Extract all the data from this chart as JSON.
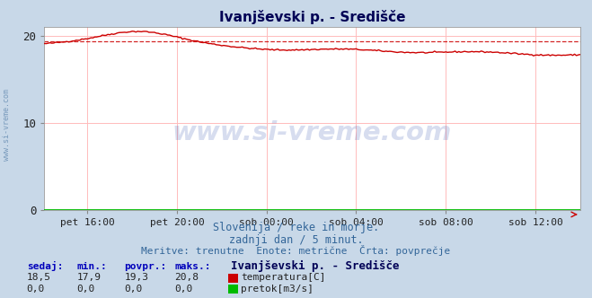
{
  "title": "Ivanjševski p. - Središče",
  "bg_color": "#c8d8e8",
  "plot_bg_color": "#ffffff",
  "grid_color": "#ffbbbb",
  "x_labels": [
    "pet 16:00",
    "pet 20:00",
    "sob 00:00",
    "sob 04:00",
    "sob 08:00",
    "sob 12:00"
  ],
  "x_ticks_norm": [
    0.0833,
    0.25,
    0.4167,
    0.5833,
    0.75,
    0.9167
  ],
  "ylim": [
    0,
    21.0
  ],
  "yticks": [
    0,
    10,
    20
  ],
  "temp_color": "#cc0000",
  "flow_color": "#00bb00",
  "avg_line_color": "#cc0000",
  "avg_value": 19.3,
  "subtitle1": "Slovenija / reke in morje.",
  "subtitle2": "zadnji dan / 5 minut.",
  "subtitle3": "Meritve: trenutne  Enote: metrične  Črta: povprečje",
  "watermark": "www.si-vreme.com",
  "legend_title": "Ivanjševski p. - Središče",
  "label_temp": "temperatura[C]",
  "label_flow": "pretok[m3/s]",
  "col_sedaj": "sedaj:",
  "col_min": "min.:",
  "col_povpr": "povpr.:",
  "col_maks": "maks.:",
  "val_sedaj_t": "18,5",
  "val_min_t": "17,9",
  "val_povpr_t": "19,3",
  "val_maks_t": "20,8",
  "val_sedaj_f": "0,0",
  "val_min_f": "0,0",
  "val_povpr_f": "0,0",
  "val_maks_f": "0,0",
  "figsize": [
    6.59,
    3.32
  ],
  "dpi": 100
}
